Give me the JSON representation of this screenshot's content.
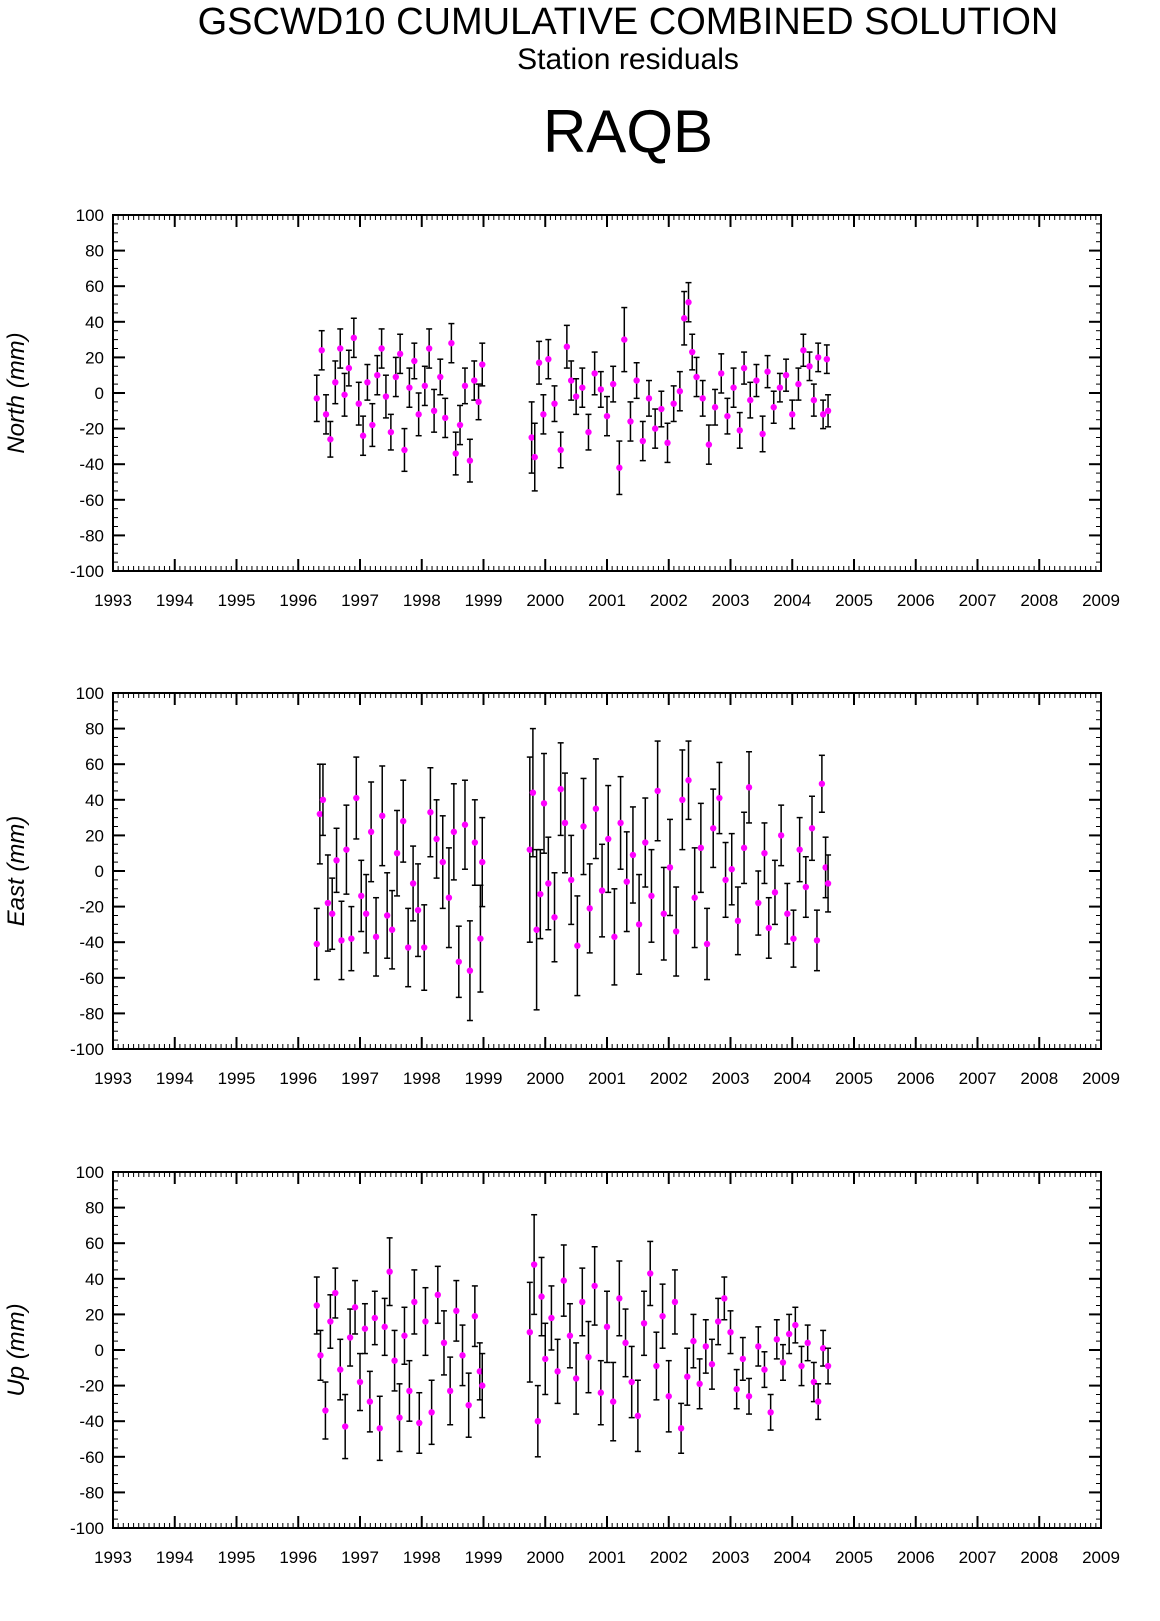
{
  "header": {
    "title": "GSCWD10 CUMULATIVE COMBINED SOLUTION",
    "subtitle": "Station residuals",
    "station": "RAQB"
  },
  "colors": {
    "point": "#ff00ff",
    "error_bar": "#000000",
    "frame": "#000000"
  },
  "chart_data": [
    {
      "type": "scatter",
      "ylabel": "North (mm)",
      "xlim": [
        1993,
        2009
      ],
      "ylim": [
        -100,
        100
      ],
      "x_ticks": [
        1993,
        1994,
        1995,
        1996,
        1997,
        1998,
        1999,
        2000,
        2001,
        2002,
        2003,
        2004,
        2005,
        2006,
        2007,
        2008,
        2009
      ],
      "y_ticks": [
        -100,
        -80,
        -60,
        -40,
        -20,
        0,
        20,
        40,
        60,
        80,
        100
      ],
      "grid": false,
      "points": [
        [
          1996.3,
          -3,
          13
        ],
        [
          1996.38,
          24,
          11
        ],
        [
          1996.45,
          -12,
          11
        ],
        [
          1996.52,
          -26,
          10
        ],
        [
          1996.6,
          6,
          12
        ],
        [
          1996.68,
          25,
          11
        ],
        [
          1996.75,
          -1,
          12
        ],
        [
          1996.82,
          14,
          10
        ],
        [
          1996.9,
          31,
          11
        ],
        [
          1996.98,
          -6,
          12
        ],
        [
          1997.05,
          -24,
          11
        ],
        [
          1997.12,
          6,
          10
        ],
        [
          1997.2,
          -18,
          12
        ],
        [
          1997.28,
          10,
          11
        ],
        [
          1997.35,
          25,
          11
        ],
        [
          1997.42,
          -2,
          12
        ],
        [
          1997.5,
          -22,
          10
        ],
        [
          1997.58,
          9,
          11
        ],
        [
          1997.65,
          22,
          11
        ],
        [
          1997.72,
          -32,
          12
        ],
        [
          1997.8,
          3,
          11
        ],
        [
          1997.88,
          18,
          10
        ],
        [
          1997.95,
          -12,
          12
        ],
        [
          1998.05,
          4,
          11
        ],
        [
          1998.12,
          25,
          11
        ],
        [
          1998.2,
          -10,
          12
        ],
        [
          1998.3,
          9,
          10
        ],
        [
          1998.38,
          -14,
          11
        ],
        [
          1998.48,
          28,
          11
        ],
        [
          1998.55,
          -34,
          12
        ],
        [
          1998.62,
          -18,
          11
        ],
        [
          1998.7,
          4,
          10
        ],
        [
          1998.78,
          -38,
          12
        ],
        [
          1998.85,
          7,
          11
        ],
        [
          1998.92,
          -5,
          10
        ],
        [
          1998.98,
          16,
          12
        ],
        [
          1999.78,
          -25,
          20
        ],
        [
          1999.83,
          -36,
          19
        ],
        [
          1999.9,
          17,
          12
        ],
        [
          1999.97,
          -12,
          11
        ],
        [
          2000.05,
          19,
          11
        ],
        [
          2000.15,
          -6,
          10
        ],
        [
          2000.25,
          -32,
          10
        ],
        [
          2000.35,
          26,
          12
        ],
        [
          2000.42,
          7,
          11
        ],
        [
          2000.5,
          -2,
          10
        ],
        [
          2000.6,
          3,
          11
        ],
        [
          2000.7,
          -22,
          10
        ],
        [
          2000.8,
          11,
          12
        ],
        [
          2000.9,
          2,
          10
        ],
        [
          2001.0,
          -13,
          11
        ],
        [
          2001.1,
          5,
          10
        ],
        [
          2001.2,
          -42,
          15
        ],
        [
          2001.28,
          30,
          18
        ],
        [
          2001.38,
          -16,
          11
        ],
        [
          2001.48,
          7,
          10
        ],
        [
          2001.58,
          -27,
          11
        ],
        [
          2001.68,
          -3,
          10
        ],
        [
          2001.78,
          -20,
          11
        ],
        [
          2001.88,
          -9,
          10
        ],
        [
          2001.98,
          -28,
          11
        ],
        [
          2002.08,
          -6,
          10
        ],
        [
          2002.18,
          1,
          11
        ],
        [
          2002.25,
          42,
          15
        ],
        [
          2002.32,
          51,
          11
        ],
        [
          2002.38,
          23,
          10
        ],
        [
          2002.45,
          9,
          11
        ],
        [
          2002.55,
          -3,
          10
        ],
        [
          2002.65,
          -29,
          11
        ],
        [
          2002.75,
          -8,
          10
        ],
        [
          2002.85,
          11,
          11
        ],
        [
          2002.95,
          -13,
          10
        ],
        [
          2003.05,
          3,
          11
        ],
        [
          2003.15,
          -21,
          10
        ],
        [
          2003.22,
          14,
          9
        ],
        [
          2003.32,
          -4,
          10
        ],
        [
          2003.42,
          7,
          9
        ],
        [
          2003.52,
          -23,
          10
        ],
        [
          2003.6,
          12,
          9
        ],
        [
          2003.7,
          -8,
          9
        ],
        [
          2003.8,
          3,
          8
        ],
        [
          2003.9,
          10,
          9
        ],
        [
          2004.0,
          -12,
          8
        ],
        [
          2004.1,
          5,
          9
        ],
        [
          2004.18,
          24,
          9
        ],
        [
          2004.28,
          15,
          8
        ],
        [
          2004.35,
          -4,
          9
        ],
        [
          2004.42,
          20,
          8
        ],
        [
          2004.5,
          -12,
          8
        ],
        [
          2004.56,
          19,
          8
        ],
        [
          2004.58,
          -10,
          9
        ]
      ]
    },
    {
      "type": "scatter",
      "ylabel": "East (mm)",
      "xlim": [
        1993,
        2009
      ],
      "ylim": [
        -100,
        100
      ],
      "x_ticks": [
        1993,
        1994,
        1995,
        1996,
        1997,
        1998,
        1999,
        2000,
        2001,
        2002,
        2003,
        2004,
        2005,
        2006,
        2007,
        2008,
        2009
      ],
      "y_ticks": [
        -100,
        -80,
        -60,
        -40,
        -20,
        0,
        20,
        40,
        60,
        80,
        100
      ],
      "grid": false,
      "points": [
        [
          1996.3,
          -41,
          20
        ],
        [
          1996.35,
          32,
          28
        ],
        [
          1996.4,
          40,
          20
        ],
        [
          1996.48,
          -18,
          27
        ],
        [
          1996.55,
          -24,
          20
        ],
        [
          1996.62,
          6,
          18
        ],
        [
          1996.7,
          -39,
          22
        ],
        [
          1996.78,
          12,
          25
        ],
        [
          1996.86,
          -38,
          18
        ],
        [
          1996.94,
          41,
          23
        ],
        [
          1997.02,
          -14,
          20
        ],
        [
          1997.1,
          -24,
          22
        ],
        [
          1997.18,
          22,
          28
        ],
        [
          1997.26,
          -37,
          22
        ],
        [
          1997.36,
          31,
          28
        ],
        [
          1997.44,
          -25,
          24
        ],
        [
          1997.52,
          -33,
          22
        ],
        [
          1997.6,
          10,
          24
        ],
        [
          1997.7,
          28,
          23
        ],
        [
          1997.78,
          -43,
          22
        ],
        [
          1997.86,
          -7,
          21
        ],
        [
          1997.94,
          -22,
          26
        ],
        [
          1998.04,
          -43,
          24
        ],
        [
          1998.14,
          33,
          25
        ],
        [
          1998.24,
          18,
          22
        ],
        [
          1998.34,
          5,
          26
        ],
        [
          1998.44,
          -15,
          28
        ],
        [
          1998.52,
          22,
          27
        ],
        [
          1998.6,
          -51,
          20
        ],
        [
          1998.7,
          26,
          25
        ],
        [
          1998.78,
          -56,
          28
        ],
        [
          1998.86,
          16,
          24
        ],
        [
          1998.95,
          -38,
          30
        ],
        [
          1998.98,
          5,
          25
        ],
        [
          1999.75,
          12,
          52
        ],
        [
          1999.8,
          44,
          36
        ],
        [
          1999.86,
          -33,
          45
        ],
        [
          1999.92,
          -13,
          25
        ],
        [
          1999.98,
          38,
          28
        ],
        [
          2000.05,
          -7,
          26
        ],
        [
          2000.15,
          -26,
          25
        ],
        [
          2000.25,
          46,
          26
        ],
        [
          2000.32,
          27,
          28
        ],
        [
          2000.42,
          -5,
          25
        ],
        [
          2000.52,
          -42,
          28
        ],
        [
          2000.62,
          25,
          27
        ],
        [
          2000.72,
          -21,
          25
        ],
        [
          2000.82,
          35,
          28
        ],
        [
          2000.92,
          -11,
          26
        ],
        [
          2001.02,
          18,
          30
        ],
        [
          2001.12,
          -37,
          27
        ],
        [
          2001.22,
          27,
          26
        ],
        [
          2001.32,
          -6,
          28
        ],
        [
          2001.42,
          9,
          27
        ],
        [
          2001.52,
          -30,
          28
        ],
        [
          2001.62,
          16,
          25
        ],
        [
          2001.72,
          -14,
          26
        ],
        [
          2001.82,
          45,
          28
        ],
        [
          2001.92,
          -24,
          26
        ],
        [
          2002.02,
          2,
          27
        ],
        [
          2002.12,
          -34,
          25
        ],
        [
          2002.22,
          40,
          28
        ],
        [
          2002.32,
          51,
          22
        ],
        [
          2002.42,
          -15,
          28
        ],
        [
          2002.52,
          13,
          25
        ],
        [
          2002.62,
          -41,
          20
        ],
        [
          2002.72,
          24,
          22
        ],
        [
          2002.82,
          41,
          20
        ],
        [
          2002.92,
          -5,
          21
        ],
        [
          2003.02,
          1,
          20
        ],
        [
          2003.12,
          -28,
          19
        ],
        [
          2003.22,
          13,
          20
        ],
        [
          2003.3,
          47,
          20
        ],
        [
          2003.45,
          -18,
          18
        ],
        [
          2003.55,
          10,
          17
        ],
        [
          2003.62,
          -32,
          17
        ],
        [
          2003.72,
          -12,
          18
        ],
        [
          2003.82,
          20,
          17
        ],
        [
          2003.92,
          -24,
          17
        ],
        [
          2004.02,
          -38,
          16
        ],
        [
          2004.12,
          12,
          18
        ],
        [
          2004.22,
          -9,
          17
        ],
        [
          2004.32,
          24,
          18
        ],
        [
          2004.4,
          -39,
          17
        ],
        [
          2004.48,
          49,
          16
        ],
        [
          2004.54,
          2,
          17
        ],
        [
          2004.58,
          -7,
          16
        ]
      ]
    },
    {
      "type": "scatter",
      "ylabel": "Up (mm)",
      "xlim": [
        1993,
        2009
      ],
      "ylim": [
        -100,
        100
      ],
      "x_ticks": [
        1993,
        1994,
        1995,
        1996,
        1997,
        1998,
        1999,
        2000,
        2001,
        2002,
        2003,
        2004,
        2005,
        2006,
        2007,
        2008,
        2009
      ],
      "y_ticks": [
        -100,
        -80,
        -60,
        -40,
        -20,
        0,
        20,
        40,
        60,
        80,
        100
      ],
      "grid": false,
      "points": [
        [
          1996.3,
          25,
          16
        ],
        [
          1996.36,
          -3,
          14
        ],
        [
          1996.44,
          -34,
          16
        ],
        [
          1996.52,
          16,
          15
        ],
        [
          1996.6,
          32,
          14
        ],
        [
          1996.68,
          -11,
          17
        ],
        [
          1996.76,
          -43,
          18
        ],
        [
          1996.84,
          7,
          16
        ],
        [
          1996.92,
          24,
          15
        ],
        [
          1997.0,
          -18,
          16
        ],
        [
          1997.08,
          12,
          14
        ],
        [
          1997.16,
          -29,
          17
        ],
        [
          1997.24,
          18,
          15
        ],
        [
          1997.32,
          -44,
          18
        ],
        [
          1997.4,
          13,
          16
        ],
        [
          1997.48,
          44,
          19
        ],
        [
          1997.56,
          -6,
          17
        ],
        [
          1997.64,
          -38,
          19
        ],
        [
          1997.72,
          8,
          16
        ],
        [
          1997.8,
          -23,
          17
        ],
        [
          1997.88,
          27,
          18
        ],
        [
          1997.96,
          -41,
          17
        ],
        [
          1998.06,
          16,
          19
        ],
        [
          1998.16,
          -35,
          18
        ],
        [
          1998.26,
          31,
          16
        ],
        [
          1998.36,
          4,
          18
        ],
        [
          1998.46,
          -23,
          19
        ],
        [
          1998.56,
          22,
          17
        ],
        [
          1998.66,
          -3,
          17
        ],
        [
          1998.76,
          -31,
          18
        ],
        [
          1998.86,
          19,
          17
        ],
        [
          1998.94,
          -12,
          16
        ],
        [
          1998.98,
          -20,
          18
        ],
        [
          1999.75,
          10,
          28
        ],
        [
          1999.82,
          48,
          28
        ],
        [
          1999.88,
          -40,
          20
        ],
        [
          1999.94,
          30,
          22
        ],
        [
          2000.0,
          -5,
          20
        ],
        [
          2000.1,
          18,
          18
        ],
        [
          2000.2,
          -12,
          18
        ],
        [
          2000.3,
          39,
          20
        ],
        [
          2000.4,
          8,
          18
        ],
        [
          2000.5,
          -16,
          20
        ],
        [
          2000.6,
          27,
          19
        ],
        [
          2000.7,
          -4,
          20
        ],
        [
          2000.8,
          36,
          22
        ],
        [
          2000.9,
          -24,
          18
        ],
        [
          2001.0,
          13,
          20
        ],
        [
          2001.1,
          -29,
          22
        ],
        [
          2001.2,
          29,
          21
        ],
        [
          2001.3,
          4,
          19
        ],
        [
          2001.4,
          -18,
          20
        ],
        [
          2001.5,
          -37,
          20
        ],
        [
          2001.6,
          15,
          18
        ],
        [
          2001.7,
          43,
          18
        ],
        [
          2001.8,
          -9,
          19
        ],
        [
          2001.9,
          19,
          18
        ],
        [
          2002.0,
          -26,
          20
        ],
        [
          2002.1,
          27,
          18
        ],
        [
          2002.2,
          -44,
          14
        ],
        [
          2002.3,
          -15,
          16
        ],
        [
          2002.4,
          5,
          15
        ],
        [
          2002.5,
          -19,
          14
        ],
        [
          2002.6,
          2,
          15
        ],
        [
          2002.7,
          -8,
          14
        ],
        [
          2002.8,
          16,
          13
        ],
        [
          2002.9,
          29,
          12
        ],
        [
          2003.0,
          10,
          12
        ],
        [
          2003.1,
          -22,
          11
        ],
        [
          2003.2,
          -5,
          12
        ],
        [
          2003.3,
          -26,
          10
        ],
        [
          2003.45,
          2,
          11
        ],
        [
          2003.55,
          -11,
          10
        ],
        [
          2003.65,
          -35,
          10
        ],
        [
          2003.75,
          6,
          11
        ],
        [
          2003.85,
          -7,
          10
        ],
        [
          2003.95,
          9,
          11
        ],
        [
          2004.05,
          14,
          10
        ],
        [
          2004.15,
          -9,
          11
        ],
        [
          2004.25,
          4,
          10
        ],
        [
          2004.35,
          -18,
          11
        ],
        [
          2004.42,
          -29,
          10
        ],
        [
          2004.5,
          1,
          10
        ],
        [
          2004.58,
          -9,
          10
        ]
      ]
    }
  ]
}
